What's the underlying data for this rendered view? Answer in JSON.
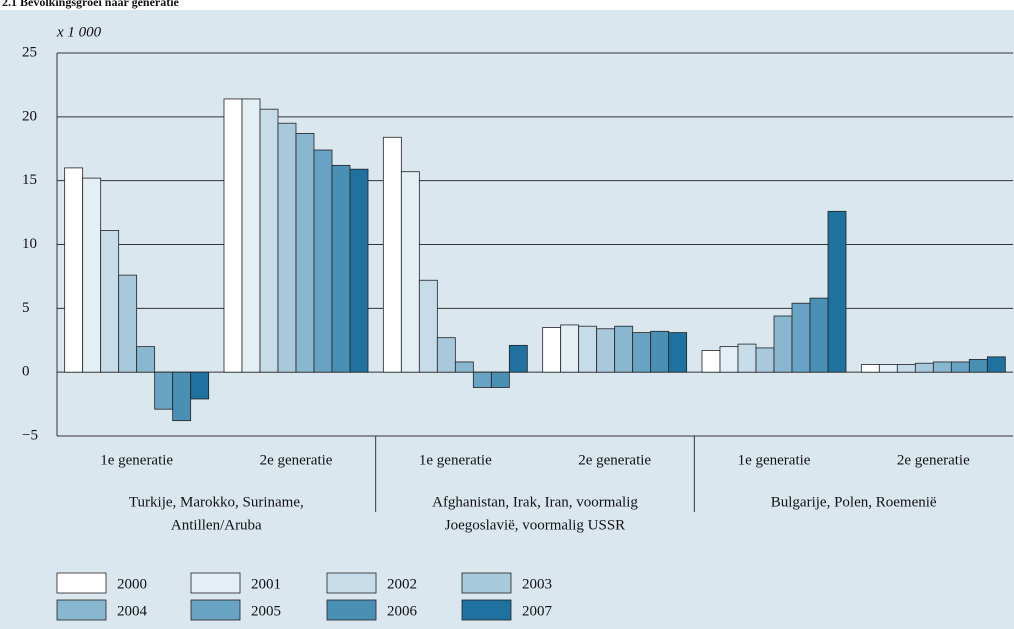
{
  "chart_data": {
    "type": "bar",
    "title": "2.1 Bevolkingsgroei naar generatie",
    "y_unit_label": "x 1 000",
    "categories": [
      "1e generatie",
      "2e generatie",
      "1e generatie",
      "2e generatie",
      "1e generatie",
      "2e generatie"
    ],
    "groups": [
      [
        "Turkije, Marokko, Suriname,",
        "Antillen/Aruba"
      ],
      [
        "Afghanistan, Irak, Iran, voormalig",
        "Joegoslavië, voormalig USSR"
      ],
      [
        "Bulgarije, Polen, Roemenië"
      ]
    ],
    "series": [
      {
        "name": "2000",
        "color": "#ffffff",
        "values": [
          16.0,
          21.4,
          18.4,
          3.5,
          1.7,
          0.6
        ]
      },
      {
        "name": "2001",
        "color": "#e3eef5",
        "values": [
          15.2,
          21.4,
          15.7,
          3.7,
          2.0,
          0.6
        ]
      },
      {
        "name": "2002",
        "color": "#c6dce8",
        "values": [
          11.1,
          20.6,
          7.2,
          3.6,
          2.2,
          0.6
        ]
      },
      {
        "name": "2003",
        "color": "#a8c9dc",
        "values": [
          7.6,
          19.5,
          2.7,
          3.4,
          1.9,
          0.7
        ]
      },
      {
        "name": "2004",
        "color": "#8ab7d0",
        "values": [
          2.0,
          18.7,
          0.8,
          3.6,
          4.4,
          0.8
        ]
      },
      {
        "name": "2005",
        "color": "#69a3c3",
        "values": [
          -2.9,
          17.4,
          -1.2,
          3.1,
          5.4,
          0.8
        ]
      },
      {
        "name": "2006",
        "color": "#4a8fb4",
        "values": [
          -3.8,
          16.2,
          -1.2,
          3.2,
          5.8,
          1.0
        ]
      },
      {
        "name": "2007",
        "color": "#1f72a0",
        "values": [
          -2.1,
          15.9,
          2.1,
          3.1,
          12.6,
          1.2
        ]
      }
    ],
    "ylim": [
      -5,
      25
    ],
    "yticks": [
      {
        "value": -5,
        "label": "−5"
      },
      0,
      5,
      10,
      15,
      20,
      25
    ],
    "grid": true
  }
}
